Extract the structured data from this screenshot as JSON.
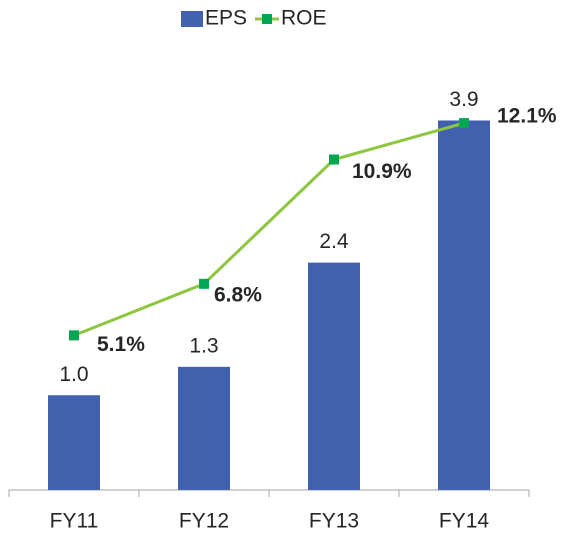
{
  "chart_data": {
    "type": "bar",
    "categories": [
      "FY11",
      "FY12",
      "FY13",
      "FY14"
    ],
    "series": [
      {
        "name": "EPS",
        "type": "bar",
        "color": "#4160ad",
        "values": [
          1.0,
          1.3,
          2.4,
          3.9
        ],
        "value_labels": [
          "1.0",
          "1.3",
          "2.4",
          "3.9"
        ]
      },
      {
        "name": "ROE",
        "type": "line",
        "axis": "y2",
        "color": "#8dc63f",
        "marker_color": "#00a651",
        "values": [
          5.1,
          6.8,
          10.9,
          12.1
        ],
        "value_labels": [
          "5.1%",
          "6.8%",
          "10.9%",
          "12.1%"
        ]
      }
    ],
    "ylim": [
      0,
      4
    ],
    "y2lim": [
      0,
      12.5
    ],
    "legend": "top"
  }
}
